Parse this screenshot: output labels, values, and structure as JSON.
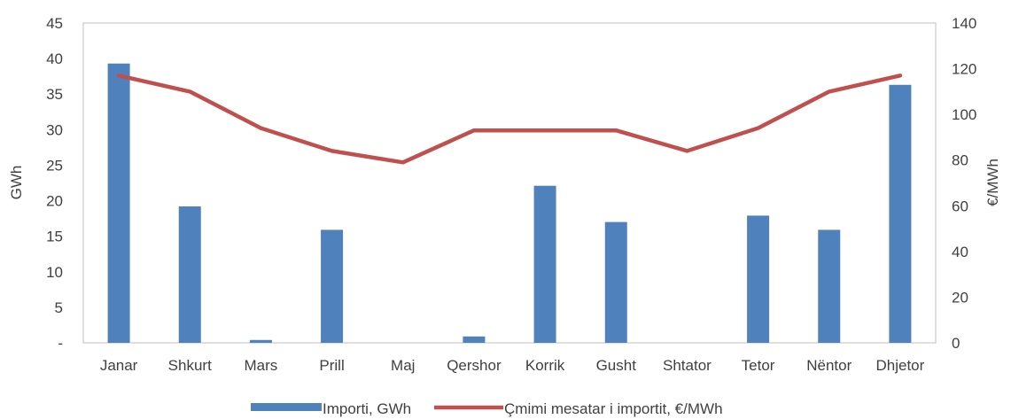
{
  "chart_data": {
    "type": "bar",
    "categories": [
      "Janar",
      "Shkurt",
      "Mars",
      "Prill",
      "Maj",
      "Qershor",
      "Korrik",
      "Gusht",
      "Shtator",
      "Tetor",
      "Nëntor",
      "Dhjetor"
    ],
    "series": [
      {
        "name": "Importi, GWh",
        "type": "bar",
        "axis": "left",
        "color": "#4F81BD",
        "values": [
          39.3,
          19.2,
          0.4,
          15.9,
          0,
          0.9,
          22.1,
          17.0,
          0,
          17.9,
          15.9,
          36.3
        ]
      },
      {
        "name": "Çmimi mesatar i importit, €/MWh",
        "type": "line",
        "axis": "right",
        "color": "#C0504D",
        "values": [
          117,
          110,
          94,
          84,
          79,
          93,
          93,
          93,
          84,
          94,
          110,
          117
        ]
      }
    ],
    "ylabel": "GWh",
    "y2label": "€/MWh",
    "ylim": [
      0,
      45
    ],
    "y2lim": [
      0,
      140
    ],
    "yticks": [
      "-",
      "5",
      "10",
      "15",
      "20",
      "25",
      "30",
      "35",
      "40",
      "45"
    ],
    "y2ticks": [
      "0",
      "20",
      "40",
      "60",
      "80",
      "100",
      "120",
      "140"
    ],
    "grid": false,
    "legend": "bottom"
  }
}
